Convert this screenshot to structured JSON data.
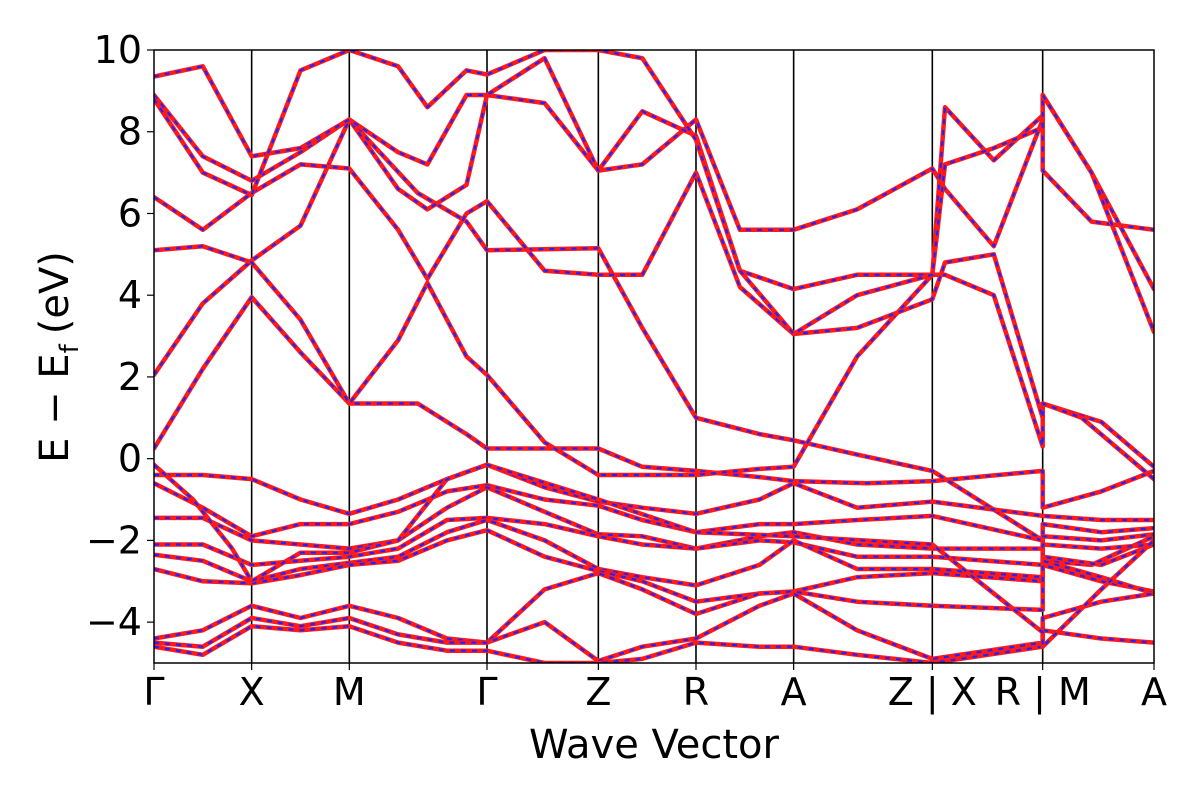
{
  "chart_data": {
    "type": "line",
    "xlabel": "Wave Vector",
    "ylabel": "E − E",
    "ylabel_sub": "f",
    "ylabel_unit": "(eV)",
    "ylim": [
      -5,
      10
    ],
    "y_ticks": [
      {
        "value": 10,
        "label": "10"
      },
      {
        "value": 8,
        "label": "8"
      },
      {
        "value": 6,
        "label": "6"
      },
      {
        "value": 4,
        "label": "4"
      },
      {
        "value": 2,
        "label": "2"
      },
      {
        "value": 0,
        "label": "0"
      },
      {
        "value": -2,
        "label": "−2"
      },
      {
        "value": -4,
        "label": "−4"
      }
    ],
    "x_ticks": [
      {
        "x": 0,
        "label": "Γ"
      },
      {
        "x": 1,
        "label": "X"
      },
      {
        "x": 2,
        "label": "M"
      },
      {
        "x": 3.41,
        "label": "Γ"
      },
      {
        "x": 4.55,
        "label": "Z"
      },
      {
        "x": 5.55,
        "label": "R"
      },
      {
        "x": 6.55,
        "label": "A"
      },
      {
        "x": 7.97,
        "label": "Z | X"
      },
      {
        "x": 9.1,
        "label": "R | M"
      },
      {
        "x": 10.24,
        "label": "A"
      }
    ],
    "xlim": [
      0,
      10.24
    ],
    "series_colors": {
      "solid": "#ff1a1a",
      "dashed": "#2222ff"
    },
    "bands": [
      [
        [
          0,
          0.25
        ],
        [
          0.5,
          2.2
        ],
        [
          1,
          3.95
        ],
        [
          1.5,
          2.6
        ],
        [
          2,
          1.35
        ],
        [
          2.7,
          1.35
        ],
        [
          3.2,
          0.6
        ],
        [
          3.41,
          0.25
        ],
        [
          4.55,
          0.25
        ],
        [
          5.0,
          -0.2
        ],
        [
          5.55,
          -0.3
        ],
        [
          6.2,
          -0.45
        ],
        [
          6.55,
          -0.55
        ],
        [
          7.3,
          -0.6
        ],
        [
          7.97,
          -0.55
        ],
        [
          9.1,
          -0.3
        ],
        [
          9.1,
          -1.2
        ],
        [
          9.7,
          -0.8
        ],
        [
          10.24,
          -0.3
        ]
      ],
      [
        [
          0,
          2.05
        ],
        [
          0.5,
          3.8
        ],
        [
          1,
          4.85
        ],
        [
          1.5,
          5.7
        ],
        [
          2,
          8.3
        ],
        [
          2.7,
          6.5
        ],
        [
          3.2,
          5.8
        ],
        [
          3.41,
          5.1
        ],
        [
          4.55,
          5.15
        ],
        [
          5.0,
          3.2
        ],
        [
          5.55,
          1.0
        ],
        [
          6.2,
          0.6
        ],
        [
          6.55,
          0.45
        ],
        [
          7.2,
          0.1
        ],
        [
          7.97,
          -0.3
        ],
        [
          9.1,
          -2.0
        ],
        [
          9.1,
          -2.5
        ],
        [
          9.6,
          -2.6
        ],
        [
          10.24,
          -1.9
        ]
      ],
      [
        [
          0,
          5.1
        ],
        [
          0.5,
          5.2
        ],
        [
          1,
          4.8
        ],
        [
          1.5,
          3.4
        ],
        [
          2,
          1.35
        ],
        [
          2.5,
          2.9
        ],
        [
          2.8,
          4.3
        ],
        [
          3.2,
          2.5
        ],
        [
          3.41,
          2.05
        ],
        [
          4.0,
          0.4
        ],
        [
          4.55,
          -0.4
        ],
        [
          5.0,
          -0.4
        ],
        [
          5.55,
          -0.4
        ],
        [
          6.2,
          -0.25
        ],
        [
          6.55,
          -0.2
        ],
        [
          7.2,
          2.5
        ],
        [
          7.97,
          4.5
        ],
        [
          8.1,
          4.5
        ],
        [
          8.6,
          4.0
        ],
        [
          9.1,
          0.3
        ],
        [
          9.1,
          1.35
        ],
        [
          9.7,
          0.9
        ],
        [
          10.24,
          -0.2
        ]
      ],
      [
        [
          0,
          6.4
        ],
        [
          0.5,
          5.6
        ],
        [
          1,
          6.5
        ],
        [
          1.5,
          7.2
        ],
        [
          2,
          7.1
        ],
        [
          2.5,
          5.6
        ],
        [
          2.8,
          4.4
        ],
        [
          3.2,
          6.0
        ],
        [
          3.41,
          6.3
        ],
        [
          4.0,
          4.6
        ],
        [
          4.55,
          4.5
        ],
        [
          5.0,
          4.5
        ],
        [
          5.55,
          7.0
        ],
        [
          6.0,
          4.2
        ],
        [
          6.55,
          3.05
        ],
        [
          7.2,
          3.2
        ],
        [
          7.97,
          3.9
        ],
        [
          8.1,
          4.8
        ],
        [
          8.6,
          5.0
        ],
        [
          9.1,
          1.0
        ],
        [
          9.1,
          1.35
        ],
        [
          9.5,
          1.0
        ],
        [
          10.24,
          -0.5
        ]
      ],
      [
        [
          0,
          8.9
        ],
        [
          0.5,
          7.4
        ],
        [
          1,
          6.8
        ],
        [
          1.5,
          7.5
        ],
        [
          2,
          8.3
        ],
        [
          2.5,
          6.6
        ],
        [
          2.8,
          6.1
        ],
        [
          3.2,
          6.7
        ],
        [
          3.41,
          8.9
        ],
        [
          4.0,
          8.7
        ],
        [
          4.55,
          7.05
        ],
        [
          5.0,
          7.2
        ],
        [
          5.55,
          8.3
        ],
        [
          6.0,
          5.6
        ],
        [
          6.55,
          5.6
        ],
        [
          7.2,
          6.1
        ],
        [
          7.97,
          7.1
        ],
        [
          8.1,
          6.6
        ],
        [
          8.6,
          5.2
        ],
        [
          9.1,
          8.3
        ],
        [
          9.1,
          7.05
        ],
        [
          9.6,
          5.8
        ],
        [
          10.24,
          5.6
        ]
      ],
      [
        [
          0,
          9.35
        ],
        [
          0.5,
          9.6
        ],
        [
          1,
          7.4
        ],
        [
          1.5,
          7.6
        ],
        [
          2,
          8.3
        ],
        [
          2.5,
          7.5
        ],
        [
          2.8,
          7.2
        ],
        [
          3.2,
          8.9
        ],
        [
          3.41,
          8.9
        ],
        [
          4.0,
          9.8
        ],
        [
          4.55,
          7.05
        ],
        [
          5.0,
          8.5
        ],
        [
          5.55,
          7.9
        ],
        [
          6.0,
          4.6
        ],
        [
          6.55,
          4.15
        ],
        [
          7.2,
          4.5
        ],
        [
          7.97,
          4.5
        ],
        [
          8.1,
          8.6
        ],
        [
          8.6,
          7.3
        ],
        [
          9.1,
          8.4
        ],
        [
          9.1,
          8.9
        ],
        [
          9.6,
          7.0
        ],
        [
          10.24,
          4.15
        ]
      ],
      [
        [
          0,
          8.8
        ],
        [
          0.5,
          7.0
        ],
        [
          1,
          6.45
        ],
        [
          1.5,
          9.5
        ],
        [
          2,
          10.0
        ],
        [
          2.5,
          9.6
        ],
        [
          2.8,
          8.6
        ],
        [
          3.2,
          9.5
        ],
        [
          3.41,
          9.4
        ],
        [
          4.0,
          10.0
        ],
        [
          4.55,
          10.0
        ],
        [
          5.0,
          9.8
        ],
        [
          5.55,
          7.8
        ],
        [
          6.0,
          4.6
        ],
        [
          6.55,
          3.05
        ],
        [
          7.2,
          4.0
        ],
        [
          7.97,
          4.5
        ],
        [
          8.1,
          7.2
        ],
        [
          8.6,
          7.6
        ],
        [
          9.1,
          8.1
        ],
        [
          9.1,
          8.9
        ],
        [
          9.6,
          7.0
        ],
        [
          10.24,
          3.1
        ]
      ],
      [
        [
          0,
          -0.4
        ],
        [
          0.5,
          -0.4
        ],
        [
          1,
          -0.5
        ],
        [
          1.5,
          -1.0
        ],
        [
          2,
          -1.35
        ],
        [
          2.5,
          -1.0
        ],
        [
          3.0,
          -0.5
        ],
        [
          3.41,
          -0.15
        ],
        [
          4.0,
          -0.7
        ],
        [
          4.55,
          -1.05
        ],
        [
          5.0,
          -1.2
        ],
        [
          5.55,
          -1.35
        ],
        [
          6.2,
          -1.0
        ],
        [
          6.55,
          -0.6
        ],
        [
          7.2,
          -1.2
        ],
        [
          7.97,
          -1.05
        ],
        [
          9.1,
          -1.4
        ],
        [
          9.1,
          -1.4
        ],
        [
          9.7,
          -1.5
        ],
        [
          10.24,
          -1.5
        ]
      ],
      [
        [
          0,
          -0.6
        ],
        [
          0.5,
          -1.2
        ],
        [
          1,
          -1.9
        ],
        [
          1.5,
          -1.6
        ],
        [
          2,
          -1.6
        ],
        [
          2.5,
          -1.3
        ],
        [
          3.0,
          -0.8
        ],
        [
          3.41,
          -0.65
        ],
        [
          4.0,
          -1.0
        ],
        [
          4.55,
          -1.15
        ],
        [
          5.0,
          -1.5
        ],
        [
          5.55,
          -1.8
        ],
        [
          6.2,
          -1.6
        ],
        [
          6.55,
          -1.6
        ],
        [
          7.2,
          -1.5
        ],
        [
          7.97,
          -1.4
        ],
        [
          9.1,
          -2.0
        ],
        [
          9.1,
          -1.6
        ],
        [
          9.7,
          -1.8
        ],
        [
          10.24,
          -1.7
        ]
      ],
      [
        [
          0,
          -1.45
        ],
        [
          0.5,
          -1.45
        ],
        [
          1,
          -2.0
        ],
        [
          1.5,
          -2.1
        ],
        [
          2,
          -2.2
        ],
        [
          2.5,
          -2.0
        ],
        [
          3.0,
          -1.2
        ],
        [
          3.41,
          -0.7
        ],
        [
          4.0,
          -1.3
        ],
        [
          4.55,
          -1.85
        ],
        [
          5.0,
          -1.9
        ],
        [
          5.55,
          -2.2
        ],
        [
          6.2,
          -1.9
        ],
        [
          6.55,
          -1.8
        ],
        [
          7.2,
          -2.1
        ],
        [
          7.97,
          -2.2
        ],
        [
          9.1,
          -2.2
        ],
        [
          9.1,
          -1.9
        ],
        [
          9.7,
          -2.0
        ],
        [
          10.24,
          -1.85
        ]
      ],
      [
        [
          0,
          -2.1
        ],
        [
          0.5,
          -2.1
        ],
        [
          1,
          -2.6
        ],
        [
          1.5,
          -2.5
        ],
        [
          2,
          -2.4
        ],
        [
          2.5,
          -2.2
        ],
        [
          3.0,
          -1.5
        ],
        [
          3.41,
          -1.45
        ],
        [
          4.0,
          -1.6
        ],
        [
          4.55,
          -1.9
        ],
        [
          5.0,
          -2.1
        ],
        [
          5.55,
          -2.2
        ],
        [
          6.2,
          -2.0
        ],
        [
          6.55,
          -2.05
        ],
        [
          7.2,
          -2.4
        ],
        [
          7.97,
          -2.4
        ],
        [
          9.1,
          -2.6
        ],
        [
          9.1,
          -2.1
        ],
        [
          9.7,
          -2.2
        ],
        [
          10.24,
          -2.1
        ]
      ],
      [
        [
          0,
          -2.35
        ],
        [
          0.5,
          -2.5
        ],
        [
          1,
          -3.0
        ],
        [
          1.5,
          -2.7
        ],
        [
          2,
          -2.55
        ],
        [
          2.5,
          -2.4
        ],
        [
          3.0,
          -1.8
        ],
        [
          3.41,
          -1.5
        ],
        [
          4.0,
          -2.0
        ],
        [
          4.55,
          -2.7
        ],
        [
          5.0,
          -2.9
        ],
        [
          5.55,
          -3.1
        ],
        [
          6.2,
          -2.6
        ],
        [
          6.55,
          -2.0
        ],
        [
          7.2,
          -2.7
        ],
        [
          7.97,
          -2.7
        ],
        [
          9.1,
          -2.9
        ],
        [
          9.1,
          -2.4
        ],
        [
          9.7,
          -2.6
        ],
        [
          10.24,
          -2.1
        ]
      ],
      [
        [
          0,
          -2.7
        ],
        [
          0.5,
          -3.0
        ],
        [
          1,
          -3.05
        ],
        [
          1.5,
          -2.85
        ],
        [
          2,
          -2.6
        ],
        [
          2.5,
          -2.5
        ],
        [
          3.0,
          -2.0
        ],
        [
          3.41,
          -1.75
        ],
        [
          4.0,
          -2.4
        ],
        [
          4.55,
          -2.75
        ],
        [
          5.0,
          -3.0
        ],
        [
          5.55,
          -3.5
        ],
        [
          6.2,
          -3.3
        ],
        [
          6.55,
          -3.25
        ],
        [
          7.2,
          -2.9
        ],
        [
          7.97,
          -2.8
        ],
        [
          9.1,
          -3.0
        ],
        [
          9.1,
          -2.6
        ],
        [
          9.7,
          -3.0
        ],
        [
          10.24,
          -3.25
        ]
      ],
      [
        [
          0,
          -4.4
        ],
        [
          0.5,
          -4.2
        ],
        [
          1,
          -3.6
        ],
        [
          1.5,
          -3.9
        ],
        [
          2,
          -3.6
        ],
        [
          2.5,
          -3.9
        ],
        [
          3.0,
          -4.4
        ],
        [
          3.41,
          -4.5
        ],
        [
          4.0,
          -3.2
        ],
        [
          4.55,
          -2.8
        ],
        [
          5.0,
          -3.2
        ],
        [
          5.55,
          -3.8
        ],
        [
          6.2,
          -3.3
        ],
        [
          6.55,
          -3.25
        ],
        [
          7.2,
          -3.5
        ],
        [
          7.97,
          -3.6
        ],
        [
          9.1,
          -3.7
        ],
        [
          9.1,
          -2.5
        ],
        [
          9.7,
          -2.9
        ],
        [
          10.24,
          -3.3
        ]
      ],
      [
        [
          0,
          -4.5
        ],
        [
          0.5,
          -4.6
        ],
        [
          1,
          -3.9
        ],
        [
          1.5,
          -4.1
        ],
        [
          2,
          -3.9
        ],
        [
          2.5,
          -4.3
        ],
        [
          3.0,
          -4.5
        ],
        [
          3.41,
          -4.5
        ],
        [
          4.0,
          -4.0
        ],
        [
          4.55,
          -4.95
        ],
        [
          5.0,
          -4.6
        ],
        [
          5.55,
          -4.4
        ],
        [
          6.2,
          -3.6
        ],
        [
          6.55,
          -3.3
        ],
        [
          7.2,
          -4.2
        ],
        [
          7.97,
          -4.9
        ],
        [
          9.1,
          -4.5
        ],
        [
          9.1,
          -3.9
        ],
        [
          9.7,
          -3.5
        ],
        [
          10.24,
          -3.3
        ]
      ],
      [
        [
          0,
          -4.6
        ],
        [
          0.5,
          -4.8
        ],
        [
          1,
          -4.1
        ],
        [
          1.5,
          -4.2
        ],
        [
          2,
          -4.1
        ],
        [
          2.5,
          -4.5
        ],
        [
          3.0,
          -4.7
        ],
        [
          3.41,
          -4.7
        ],
        [
          4.0,
          -5.0
        ],
        [
          4.55,
          -5.0
        ],
        [
          5.0,
          -4.9
        ],
        [
          5.55,
          -4.5
        ],
        [
          6.2,
          -4.6
        ],
        [
          6.55,
          -4.6
        ],
        [
          7.2,
          -4.8
        ],
        [
          7.97,
          -5.0
        ],
        [
          9.1,
          -4.6
        ],
        [
          9.1,
          -4.2
        ],
        [
          9.7,
          -4.4
        ],
        [
          10.24,
          -4.5
        ]
      ],
      [
        [
          0,
          -0.15
        ],
        [
          0.4,
          -1.0
        ],
        [
          0.8,
          -2.2
        ],
        [
          1,
          -3.0
        ],
        [
          1.5,
          -2.3
        ],
        [
          2,
          -2.3
        ],
        [
          2.5,
          -2.0
        ],
        [
          3.0,
          -0.5
        ],
        [
          3.41,
          -0.15
        ],
        [
          4.55,
          -1.0
        ],
        [
          5.55,
          -1.8
        ],
        [
          6.55,
          -1.9
        ],
        [
          7.97,
          -2.1
        ],
        [
          9.1,
          -4.25
        ],
        [
          9.1,
          -4.6
        ],
        [
          9.7,
          -3.2
        ],
        [
          10.24,
          -2.0
        ]
      ]
    ]
  }
}
